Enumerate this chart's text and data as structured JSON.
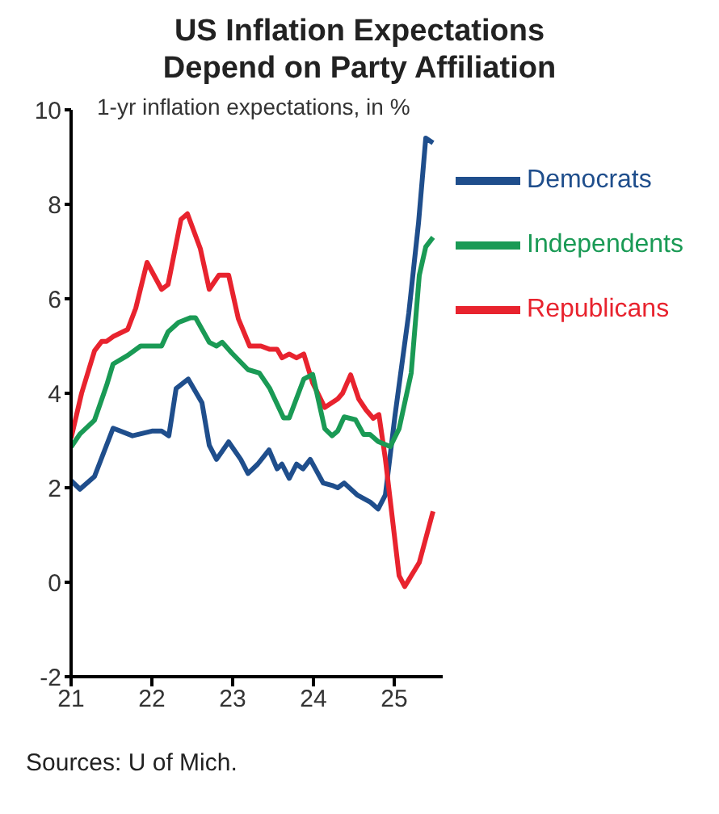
{
  "chart_data": {
    "type": "line",
    "title": "US Inflation Expectations\nDepend on Party Affiliation",
    "subtitle": "1-yr inflation expectations, in %",
    "annotations": [
      "Sources: U of Mich."
    ],
    "xlim": [
      21,
      25.6
    ],
    "xticks": [
      21,
      22,
      23,
      24,
      25
    ],
    "ylim": [
      -2,
      10
    ],
    "yticks": [
      -2,
      0,
      2,
      4,
      6,
      8,
      10
    ],
    "grid": false,
    "legend": "top right",
    "marker": "none",
    "line_style": "solid",
    "series": [
      {
        "name": "Democrats",
        "color": "#1f4e8c",
        "x": [
          21.0,
          21.11,
          21.29,
          21.52,
          21.76,
          22.0,
          22.12,
          22.21,
          22.3,
          22.45,
          22.62,
          22.71,
          22.8,
          22.95,
          23.1,
          23.19,
          23.31,
          23.45,
          23.55,
          23.61,
          23.7,
          23.79,
          23.87,
          23.96,
          24.12,
          24.23,
          24.3,
          24.38,
          24.54,
          24.7,
          24.8,
          24.89,
          25.01,
          25.18,
          25.3,
          25.39,
          25.48
        ],
        "values": [
          2.15,
          1.97,
          2.24,
          3.26,
          3.1,
          3.2,
          3.2,
          3.1,
          4.1,
          4.3,
          3.8,
          2.9,
          2.6,
          2.97,
          2.6,
          2.3,
          2.5,
          2.8,
          2.4,
          2.5,
          2.2,
          2.5,
          2.4,
          2.6,
          2.1,
          2.05,
          2.0,
          2.1,
          1.85,
          1.7,
          1.55,
          1.85,
          3.54,
          5.7,
          7.6,
          9.4,
          9.3
        ]
      },
      {
        "name": "Republicans",
        "color": "#e8232e",
        "x": [
          21.0,
          21.13,
          21.29,
          21.38,
          21.44,
          21.52,
          21.7,
          21.8,
          21.94,
          22.12,
          22.2,
          22.36,
          22.44,
          22.6,
          22.71,
          22.83,
          22.95,
          23.07,
          23.21,
          23.35,
          23.46,
          23.55,
          23.61,
          23.7,
          23.79,
          23.88,
          23.99,
          24.14,
          24.3,
          24.36,
          24.46,
          24.56,
          24.65,
          24.74,
          24.81,
          24.89,
          25.06,
          25.13,
          25.31,
          25.48
        ],
        "values": [
          3.05,
          4.0,
          4.9,
          5.1,
          5.1,
          5.2,
          5.35,
          5.8,
          6.77,
          6.2,
          6.3,
          7.68,
          7.8,
          7.06,
          6.2,
          6.5,
          6.5,
          5.58,
          5.0,
          5.0,
          4.93,
          4.93,
          4.75,
          4.83,
          4.75,
          4.83,
          4.22,
          3.7,
          3.88,
          4.0,
          4.39,
          3.88,
          3.65,
          3.47,
          3.55,
          2.61,
          0.14,
          -0.09,
          0.42,
          1.5
        ]
      },
      {
        "name": "Independents",
        "color": "#1a9a55",
        "x": [
          21.0,
          21.11,
          21.29,
          21.44,
          21.52,
          21.7,
          21.86,
          22.12,
          22.2,
          22.33,
          22.48,
          22.54,
          22.71,
          22.8,
          22.87,
          22.99,
          23.19,
          23.33,
          23.46,
          23.63,
          23.7,
          23.88,
          23.99,
          24.14,
          24.23,
          24.3,
          24.38,
          24.52,
          24.62,
          24.7,
          24.8,
          24.95,
          25.06,
          25.21,
          25.31,
          25.39,
          25.48
        ],
        "values": [
          2.86,
          3.14,
          3.43,
          4.17,
          4.62,
          4.8,
          5.0,
          5.0,
          5.3,
          5.5,
          5.6,
          5.6,
          5.08,
          5.0,
          5.08,
          4.85,
          4.5,
          4.43,
          4.1,
          3.48,
          3.48,
          4.3,
          4.4,
          3.25,
          3.1,
          3.2,
          3.5,
          3.44,
          3.13,
          3.13,
          2.98,
          2.87,
          3.25,
          4.43,
          6.5,
          7.1,
          7.3
        ]
      }
    ]
  }
}
